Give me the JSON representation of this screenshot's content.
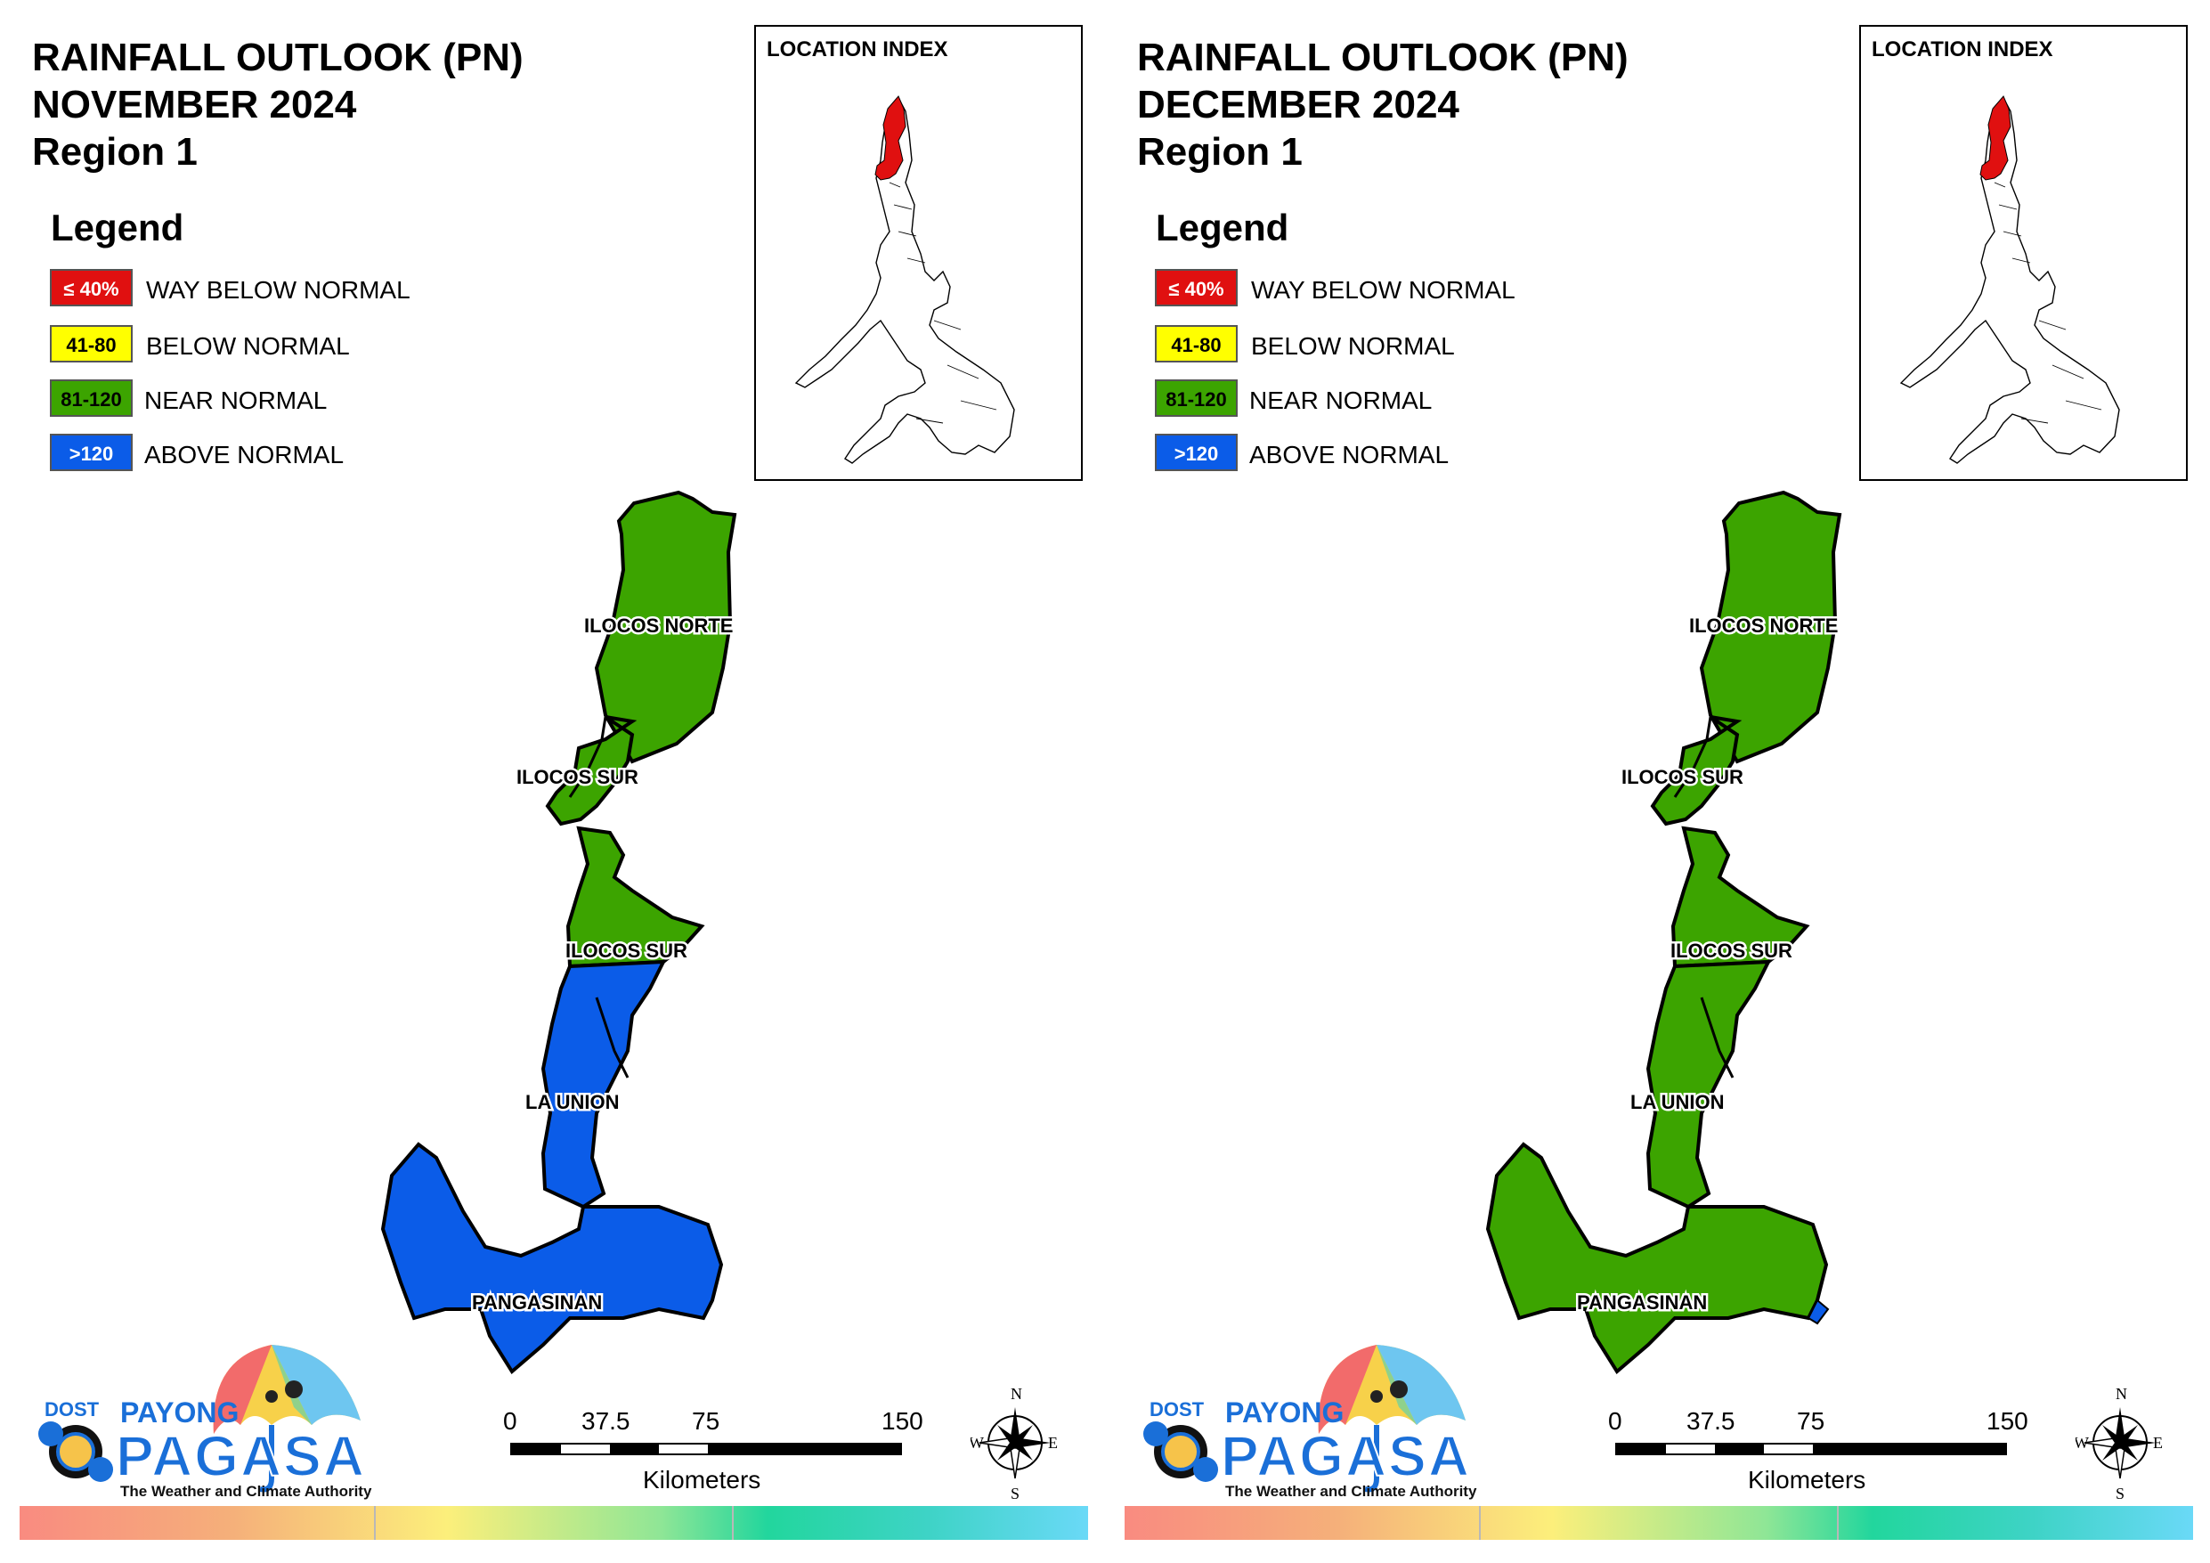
{
  "panels": [
    {
      "title_line1": "RAINFALL OUTLOOK (PN)",
      "title_line2": "NOVEMBER 2024",
      "title_line3": "Region 1",
      "provinces": {
        "ilocos_norte": {
          "label": "ILOCOS NORTE",
          "category": "near"
        },
        "ilocos_sur_north": {
          "label": "ILOCOS SUR",
          "category": "near"
        },
        "ilocos_sur_south": {
          "label": "ILOCOS SUR",
          "category": "near"
        },
        "la_union": {
          "label": "LA UNION",
          "category": "above"
        },
        "pangasinan": {
          "label": "PANGASINAN",
          "category": "above"
        }
      }
    },
    {
      "title_line1": "RAINFALL OUTLOOK (PN)",
      "title_line2": "DECEMBER 2024",
      "title_line3": "Region 1",
      "provinces": {
        "ilocos_norte": {
          "label": "ILOCOS NORTE",
          "category": "near"
        },
        "ilocos_sur_north": {
          "label": "ILOCOS SUR",
          "category": "near"
        },
        "ilocos_sur_south": {
          "label": "ILOCOS SUR",
          "category": "near"
        },
        "la_union": {
          "label": "LA UNION",
          "category": "near"
        },
        "pangasinan": {
          "label": "PANGASINAN",
          "category": "near"
        }
      }
    }
  ],
  "legend": {
    "title": "Legend",
    "items": [
      {
        "range": "≤ 40%",
        "label": "WAY BELOW NORMAL",
        "color": "#e01010",
        "text_color": "#ffffff"
      },
      {
        "range": "41-80",
        "label": "BELOW NORMAL",
        "color": "#ffff00",
        "text_color": "#000000"
      },
      {
        "range": "81-120",
        "label": "NEAR NORMAL",
        "color": "#3ca400",
        "text_color": "#000000"
      },
      {
        "range": ">120",
        "label": "ABOVE NORMAL",
        "color": "#0b5ce8",
        "text_color": "#ffffff"
      }
    ]
  },
  "colors": {
    "near": "#3ca400",
    "above": "#0b5ce8",
    "highlight": "#e01010"
  },
  "inset": {
    "label": "LOCATION INDEX"
  },
  "scale_bar": {
    "ticks": [
      "0",
      "37.5",
      "75",
      "150"
    ],
    "unit": "Kilometers"
  },
  "compass": {
    "n": "N",
    "s": "S",
    "e": "E",
    "w": "W"
  },
  "logo": {
    "dost": "DOST",
    "payong": "PAYONG",
    "pagasa": "PAGASA",
    "tagline": "The Weather and Climate Authority"
  }
}
